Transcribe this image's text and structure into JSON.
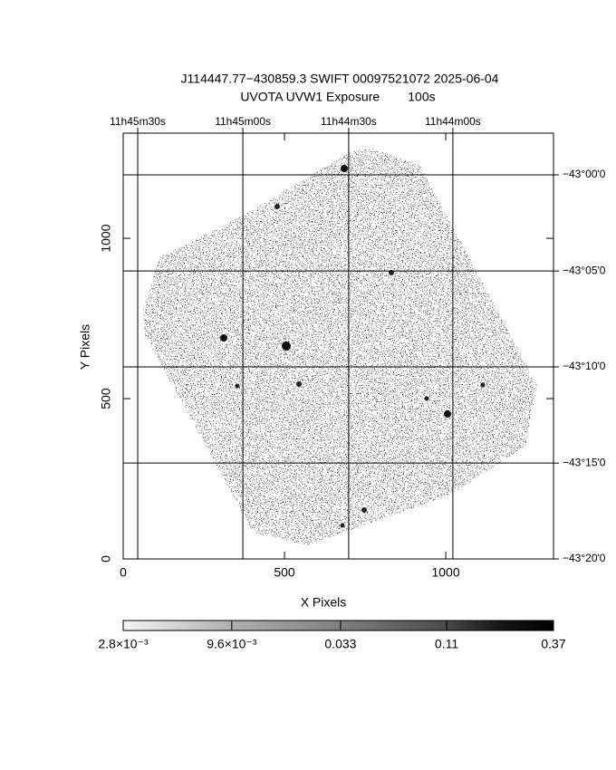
{
  "chart_data": {
    "type": "image",
    "title": "J114447.77−430859.3 SWIFT 00097521072 2025-06-04",
    "subtitle": "UVOTA UVW1 Exposure        100s",
    "xlabel": "X Pixels",
    "ylabel": "Y Pixels",
    "xlim": [
      0,
      1334
    ],
    "ylim": [
      0,
      1328
    ],
    "xticks": [
      0,
      500,
      1000
    ],
    "yticks": [
      0,
      500,
      1000
    ],
    "grid": true,
    "ra_ticks": [
      {
        "value": 45,
        "label": "11h45m30s"
      },
      {
        "value": 371,
        "label": "11h45m00s"
      },
      {
        "value": 699,
        "label": "11h44m30s"
      },
      {
        "value": 1022,
        "label": "11h44m00s"
      }
    ],
    "dec_ticks": [
      {
        "value": 1198,
        "label": "−43°00'0"
      },
      {
        "value": 898,
        "label": "−43°05'0"
      },
      {
        "value": 599,
        "label": "−43°10'0"
      },
      {
        "value": 299,
        "label": "−43°15'0"
      },
      {
        "value": 0,
        "label": "−43°20'0"
      }
    ],
    "colorbar": {
      "scale": "log",
      "lim": [
        0.0028,
        0.37
      ],
      "ticks": [
        {
          "value": 0.0028,
          "label": "2.8×10⁻³"
        },
        {
          "value": 0.0096,
          "label": "9.6×10⁻³"
        },
        0.033,
        0.11,
        0.37
      ]
    }
  }
}
